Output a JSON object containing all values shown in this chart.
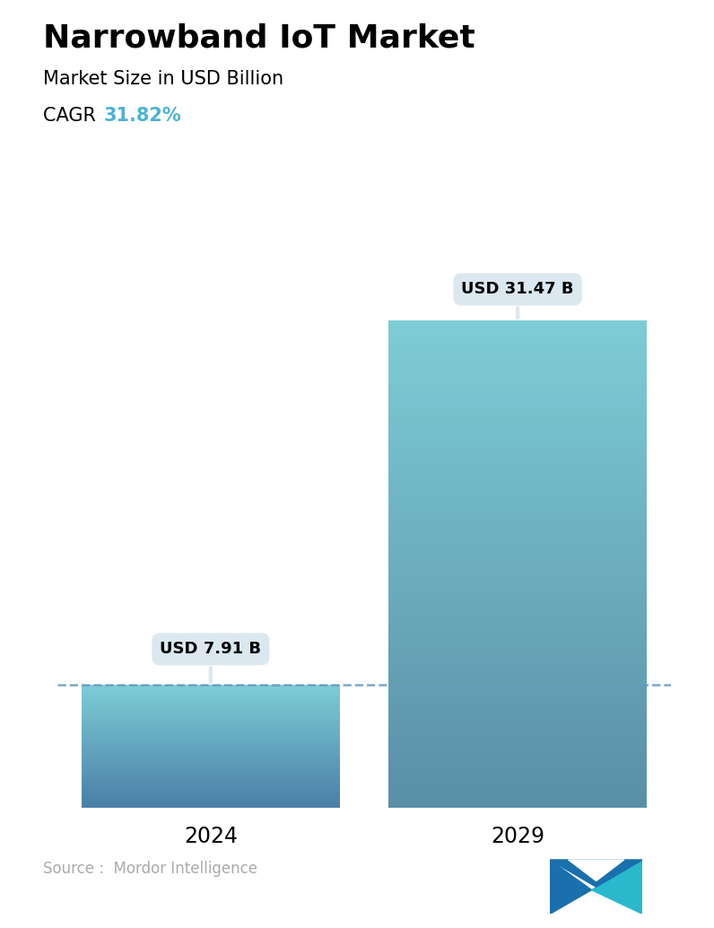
{
  "title": "Narrowband IoT Market",
  "subtitle": "Market Size in USD Billion",
  "cagr_label": "CAGR",
  "cagr_value": "31.82%",
  "cagr_color": "#4db3d4",
  "categories": [
    "2024",
    "2029"
  ],
  "values": [
    7.91,
    31.47
  ],
  "bar_labels": [
    "USD 7.91 B",
    "USD 31.47 B"
  ],
  "bar_color_top_2024": "#7dcdd6",
  "bar_color_bottom_2024": "#4a7fa8",
  "bar_color_top_2029": "#7ecdd6",
  "bar_color_bottom_2029": "#5a8fa8",
  "dashed_line_color": "#6699bb",
  "dashed_line_value": 7.91,
  "background_color": "#ffffff",
  "source_text": "Source :  Mordor Intelligence",
  "source_color": "#aaaaaa",
  "title_fontsize": 26,
  "subtitle_fontsize": 15,
  "cagr_fontsize": 15,
  "tick_fontsize": 17,
  "label_fontsize": 13,
  "ylim": [
    0,
    36
  ],
  "bar_width": 0.42,
  "tooltip_bg": "#dce8ef",
  "tooltip_fontsize": 13
}
